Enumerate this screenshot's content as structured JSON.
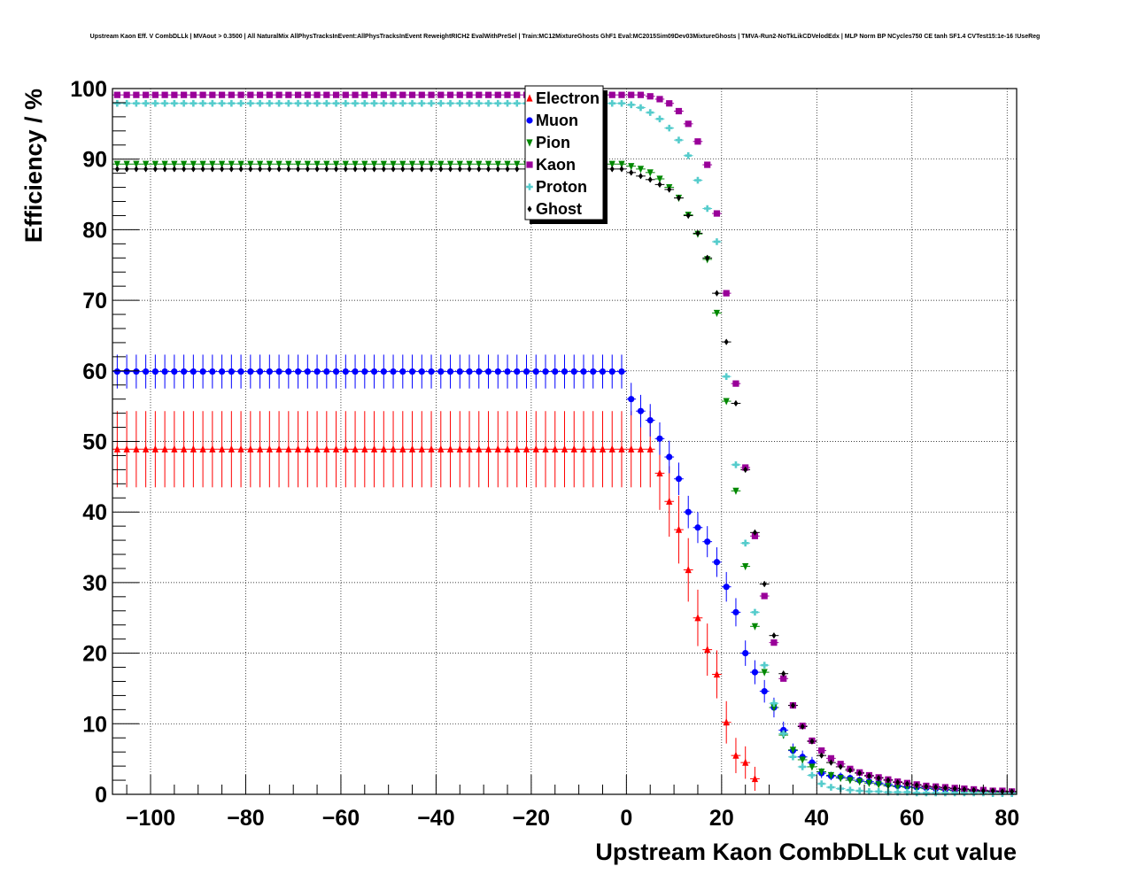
{
  "chart_data": {
    "type": "scatter",
    "title": "Upstream Kaon Eff. V CombDLLk | MVAout > 0.3500 | All NaturalMix AllPhysTracksInEvent:AllPhysTracksInEvent ReweightRICH2 EvalWithPreSel | Train:MC12MixtureGhosts GhF1 Eval:MC2015Sim09Dev03MixtureGhosts | TMVA-Run2-NoTkLikCDVelodEdx | MLP Norm BP NCycles750 CE tanh SF1.4 CVTest15:1e-16 !UseReg",
    "xlabel": "Upstream Kaon CombDLLk cut value",
    "ylabel": "Efficiency / %",
    "xlim": [
      -108,
      82
    ],
    "ylim": [
      0,
      100
    ],
    "xticks": [
      -100,
      -80,
      -60,
      -40,
      -20,
      0,
      20,
      40,
      60,
      80
    ],
    "xtick_labels": [
      "−100",
      "−80",
      "−60",
      "−40",
      "−20",
      "0",
      "20",
      "40",
      "60",
      "80"
    ],
    "yticks": [
      0,
      10,
      20,
      30,
      40,
      50,
      60,
      70,
      80,
      90,
      100
    ],
    "ytick_labels": [
      "0",
      "10",
      "20",
      "30",
      "40",
      "50",
      "60",
      "70",
      "80",
      "90",
      "100"
    ],
    "grid": true,
    "legend_position": "top-center",
    "x_start": -107,
    "x_step": 2,
    "series": [
      {
        "name": "Electron",
        "color": "#ff0000",
        "marker": "triangle-up",
        "flat_value": 48.9,
        "flat_until": 5,
        "flat_error": 5.4,
        "tail_x": [
          7,
          9,
          11,
          13,
          15,
          17,
          19,
          21,
          23,
          25,
          27
        ],
        "tail_y": [
          45.5,
          41.5,
          37.5,
          31.8,
          25.0,
          20.5,
          17.0,
          10.2,
          5.5,
          4.5,
          2.2
        ],
        "tail_err": [
          5.2,
          5.0,
          4.8,
          4.5,
          4.0,
          3.7,
          3.4,
          3.0,
          2.5,
          2.3,
          1.7
        ]
      },
      {
        "name": "Muon",
        "color": "#0000ff",
        "marker": "circle",
        "flat_value": 59.9,
        "flat_until": -1,
        "flat_error": 2.4,
        "tail_x": [
          1,
          3,
          5,
          7,
          9,
          11,
          13,
          15,
          17,
          19,
          21,
          23,
          25,
          27,
          29,
          31,
          33,
          35,
          37,
          39,
          41,
          43,
          45,
          47,
          49,
          51,
          53,
          55,
          57,
          59,
          61,
          63,
          65,
          67,
          69,
          71,
          73,
          75,
          77,
          79,
          81
        ],
        "tail_y": [
          56.0,
          54.3,
          53.0,
          50.4,
          47.8,
          44.7,
          40.0,
          37.8,
          35.8,
          32.9,
          29.4,
          25.8,
          20.0,
          17.3,
          14.6,
          12.3,
          9.1,
          6.2,
          5.3,
          4.5,
          3.0,
          2.6,
          2.5,
          2.3,
          2.0,
          1.8,
          1.6,
          1.4,
          1.2,
          1.1,
          1.0,
          0.9,
          0.8,
          0.7,
          0.6,
          0.5,
          0.5,
          0.4,
          0.4,
          0.3,
          0.3
        ],
        "tail_err": [
          2.3,
          2.3,
          2.3,
          2.3,
          2.3,
          2.3,
          2.3,
          2.2,
          2.2,
          2.1,
          2.1,
          2.0,
          1.8,
          1.7,
          1.6,
          1.4,
          1.2,
          1.0,
          0.9,
          0.8,
          0.7,
          0.6,
          0.6,
          0.5,
          0.5,
          0.4,
          0.4,
          0.4,
          0.3,
          0.3,
          0.3,
          0.3,
          0.2,
          0.2,
          0.2,
          0.2,
          0.2,
          0.2,
          0.2,
          0.1,
          0.1
        ]
      },
      {
        "name": "Pion",
        "color": "#008800",
        "marker": "triangle-down",
        "flat_value": 89.3,
        "flat_until": -1,
        "flat_error": 0.3,
        "tail_x": [
          1,
          3,
          5,
          7,
          9,
          11,
          13,
          15,
          17,
          19,
          21,
          23,
          25,
          27,
          29,
          31,
          33,
          35,
          37,
          39,
          41,
          43,
          45,
          47,
          49,
          51,
          53,
          55,
          57,
          59,
          61,
          63,
          65,
          67,
          69,
          71,
          73,
          75,
          77,
          79,
          81
        ],
        "tail_y": [
          89.0,
          88.6,
          88.1,
          87.2,
          86.0,
          84.5,
          82.1,
          79.4,
          75.8,
          68.2,
          55.7,
          43.0,
          32.3,
          23.8,
          17.3,
          12.3,
          8.4,
          6.3,
          4.9,
          3.9,
          3.2,
          2.7,
          2.3,
          2.0,
          1.8,
          1.6,
          1.4,
          1.2,
          1.1,
          1.0,
          0.9,
          0.8,
          0.7,
          0.6,
          0.5,
          0.5,
          0.4,
          0.4,
          0.3,
          0.3,
          0.3
        ],
        "tail_err": [
          0.3,
          0.3,
          0.3,
          0.3,
          0.3,
          0.3,
          0.3,
          0.3,
          0.3,
          0.3,
          0.3,
          0.3,
          0.3,
          0.3,
          0.3,
          0.2,
          0.2,
          0.2,
          0.2,
          0.2,
          0.2,
          0.2,
          0.2,
          0.2,
          0.2,
          0.2,
          0.2,
          0.2,
          0.2,
          0.2,
          0.2,
          0.2,
          0.2,
          0.2,
          0.2,
          0.2,
          0.2,
          0.2,
          0.2,
          0.2,
          0.2
        ]
      },
      {
        "name": "Kaon",
        "color": "#990099",
        "marker": "square",
        "flat_value": 99.1,
        "flat_until": 3,
        "flat_error": 0.1,
        "tail_x": [
          5,
          7,
          9,
          11,
          13,
          15,
          17,
          19,
          21,
          23,
          25,
          27,
          29,
          31,
          33,
          35,
          37,
          39,
          41,
          43,
          45,
          47,
          49,
          51,
          53,
          55,
          57,
          59,
          61,
          63,
          65,
          67,
          69,
          71,
          73,
          75,
          77,
          79,
          81
        ],
        "tail_y": [
          98.9,
          98.5,
          97.9,
          96.8,
          95.0,
          92.5,
          89.2,
          82.3,
          71.0,
          58.2,
          46.3,
          36.6,
          28.1,
          21.5,
          16.4,
          12.6,
          9.7,
          7.6,
          6.2,
          5.1,
          4.3,
          3.6,
          3.1,
          2.7,
          2.4,
          2.1,
          1.8,
          1.6,
          1.4,
          1.2,
          1.1,
          1.0,
          0.9,
          0.8,
          0.7,
          0.6,
          0.5,
          0.5,
          0.4
        ],
        "tail_err": [
          0.1,
          0.1,
          0.1,
          0.1,
          0.2,
          0.2,
          0.2,
          0.2,
          0.2,
          0.2,
          0.2,
          0.2,
          0.2,
          0.2,
          0.2,
          0.2,
          0.2,
          0.2,
          0.2,
          0.2,
          0.2,
          0.2,
          0.2,
          0.2,
          0.2,
          0.2,
          0.2,
          0.2,
          0.2,
          0.2,
          0.2,
          0.2,
          0.2,
          0.2,
          0.2,
          0.2,
          0.2,
          0.2,
          0.2
        ]
      },
      {
        "name": "Proton",
        "color": "#55cccc",
        "marker": "cross",
        "flat_value": 97.9,
        "flat_until": -1,
        "flat_error": 0.1,
        "tail_x": [
          1,
          3,
          5,
          7,
          9,
          11,
          13,
          15,
          17,
          19,
          21,
          23,
          25,
          27,
          29,
          31,
          33,
          35,
          37,
          39,
          41,
          43,
          45,
          47,
          49,
          51,
          53,
          55,
          57,
          59,
          61,
          63,
          65,
          67,
          69,
          71,
          73,
          75,
          77,
          79,
          81
        ],
        "tail_y": [
          97.7,
          97.3,
          96.6,
          95.7,
          94.4,
          92.7,
          90.5,
          87.0,
          83.0,
          78.3,
          59.2,
          46.7,
          35.6,
          25.8,
          18.3,
          12.9,
          8.6,
          5.3,
          3.9,
          2.7,
          1.5,
          1.0,
          0.8,
          0.6,
          0.5,
          0.4,
          0.4,
          0.3,
          0.3,
          0.3,
          0.2,
          0.2,
          0.2,
          0.2,
          0.2,
          0.2,
          0.2,
          0.2,
          0.1,
          0.1,
          0.1
        ],
        "tail_err": [
          0.1,
          0.1,
          0.1,
          0.1,
          0.1,
          0.1,
          0.2,
          0.2,
          0.2,
          0.2,
          0.2,
          0.2,
          0.2,
          0.2,
          0.2,
          0.2,
          0.2,
          0.2,
          0.1,
          0.1,
          0.1,
          0.1,
          0.1,
          0.1,
          0.1,
          0.1,
          0.1,
          0.1,
          0.1,
          0.1,
          0.1,
          0.1,
          0.1,
          0.1,
          0.1,
          0.1,
          0.1,
          0.1,
          0.1,
          0.1,
          0.1
        ]
      },
      {
        "name": "Ghost",
        "color": "#000000",
        "marker": "diamond",
        "flat_value": 88.6,
        "flat_until": -1,
        "flat_error": 0.4,
        "tail_x": [
          1,
          3,
          5,
          7,
          9,
          11,
          13,
          15,
          17,
          19,
          21,
          23,
          25,
          27,
          29,
          31,
          33,
          35,
          37,
          39,
          41,
          43,
          45,
          47,
          49,
          51,
          53,
          55,
          57,
          59,
          61,
          63,
          65,
          67,
          69,
          71,
          73,
          75,
          77,
          79,
          81
        ],
        "tail_y": [
          88.1,
          87.6,
          87.1,
          86.4,
          85.7,
          84.5,
          82.0,
          79.5,
          76.0,
          71.0,
          64.1,
          55.4,
          46.0,
          37.1,
          29.8,
          22.5,
          17.1,
          12.6,
          9.6,
          7.5,
          5.5,
          4.5,
          3.9,
          3.4,
          3.0,
          2.6,
          2.3,
          2.0,
          1.7,
          1.5,
          1.3,
          1.1,
          1.0,
          0.9,
          0.8,
          0.7,
          0.6,
          0.5,
          0.5,
          0.4,
          0.4
        ],
        "tail_err": [
          0.4,
          0.4,
          0.4,
          0.4,
          0.4,
          0.4,
          0.4,
          0.4,
          0.4,
          0.4,
          0.4,
          0.4,
          0.4,
          0.4,
          0.4,
          0.4,
          0.4,
          0.3,
          0.3,
          0.3,
          0.3,
          0.3,
          0.3,
          0.3,
          0.3,
          0.2,
          0.2,
          0.2,
          0.2,
          0.2,
          0.2,
          0.2,
          0.2,
          0.2,
          0.2,
          0.2,
          0.2,
          0.2,
          0.2,
          0.2,
          0.2
        ]
      }
    ]
  }
}
